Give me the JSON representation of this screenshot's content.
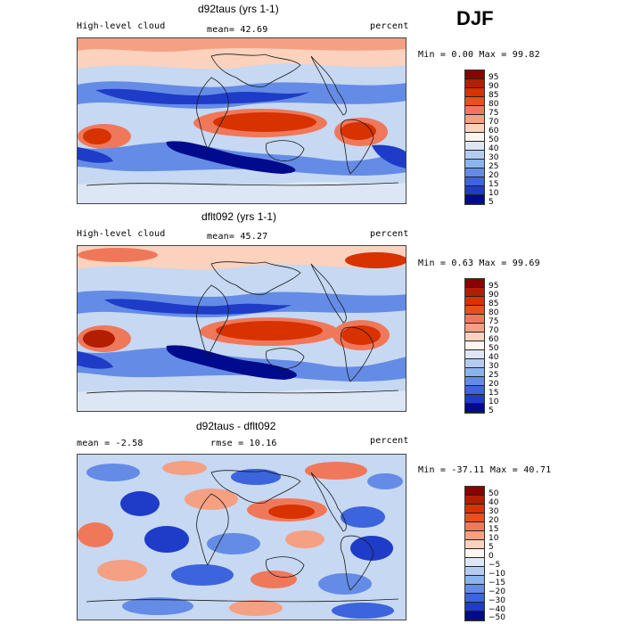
{
  "season": "DJF",
  "panels": [
    {
      "title": "d92taus (yrs 1-1)",
      "left_label": "High-level cloud",
      "center_label": "mean=  42.69",
      "right_label": "percent",
      "minmax": "Min =    0.00 Max =   99.82",
      "colorbar": [
        "95",
        "90",
        "85",
        "80",
        "75",
        "70",
        "60",
        "50",
        "40",
        "30",
        "25",
        "20",
        "15",
        "10",
        "5"
      ],
      "colorbar_colors": [
        "#8b0000",
        "#b41e00",
        "#d73200",
        "#e8501e",
        "#f0785a",
        "#f5a082",
        "#fad2be",
        "#fff5ee",
        "#dce6f5",
        "#b4ccf0",
        "#8cb4ec",
        "#648ce6",
        "#3c64dc",
        "#1e3cc8",
        "#000a8c"
      ]
    },
    {
      "title": "dflt092 (yrs 1-1)",
      "left_label": "High-level cloud",
      "center_label": "mean=  45.27",
      "right_label": "percent",
      "minmax": "Min =    0.63 Max =   99.69",
      "colorbar": [
        "95",
        "90",
        "85",
        "80",
        "75",
        "70",
        "60",
        "50",
        "40",
        "30",
        "25",
        "20",
        "15",
        "10",
        "5"
      ],
      "colorbar_colors": [
        "#8b0000",
        "#b41e00",
        "#d73200",
        "#e8501e",
        "#f0785a",
        "#f5a082",
        "#fad2be",
        "#fff5ee",
        "#dce6f5",
        "#b4ccf0",
        "#8cb4ec",
        "#648ce6",
        "#3c64dc",
        "#1e3cc8",
        "#000a8c"
      ]
    },
    {
      "title": "d92taus - dflt092",
      "left_label": "mean =   -2.58",
      "center_label": "rmse =   10.16",
      "right_label": "percent",
      "minmax": "Min =  -37.11 Max =   40.71",
      "colorbar": [
        "50",
        "40",
        "30",
        "20",
        "15",
        "10",
        "5",
        "0",
        "−5",
        "−10",
        "−15",
        "−20",
        "−30",
        "−40",
        "−50"
      ],
      "colorbar_colors": [
        "#8b0000",
        "#b41e00",
        "#d73200",
        "#e8501e",
        "#f0785a",
        "#f5a082",
        "#fad2be",
        "#fff5ee",
        "#dce6f5",
        "#b4ccf0",
        "#8cb4ec",
        "#648ce6",
        "#3c64dc",
        "#1e3cc8",
        "#000a8c"
      ]
    }
  ],
  "colors": {
    "background_field": "#b8cff0",
    "red_high": "#c0280a",
    "blue_low": "#1e3cc8",
    "coastline": "#1a1a1a"
  }
}
